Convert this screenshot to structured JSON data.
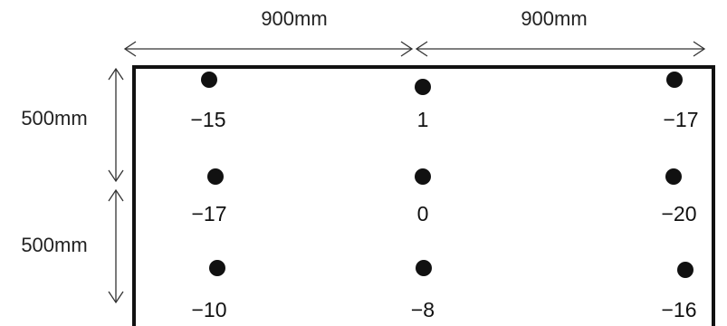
{
  "dimensions": {
    "top_left": "900mm",
    "top_right": "900mm",
    "side_upper": "500mm",
    "side_lower": "500mm"
  },
  "grid": {
    "rows": [
      {
        "values": [
          "−15",
          "1",
          "−17"
        ]
      },
      {
        "values": [
          "−17",
          "0",
          "−20"
        ]
      },
      {
        "values": [
          "−10",
          "−8",
          "−16"
        ]
      }
    ]
  },
  "colors": {
    "ink": "#111111",
    "frame": "#111111",
    "background": "#ffffff"
  }
}
